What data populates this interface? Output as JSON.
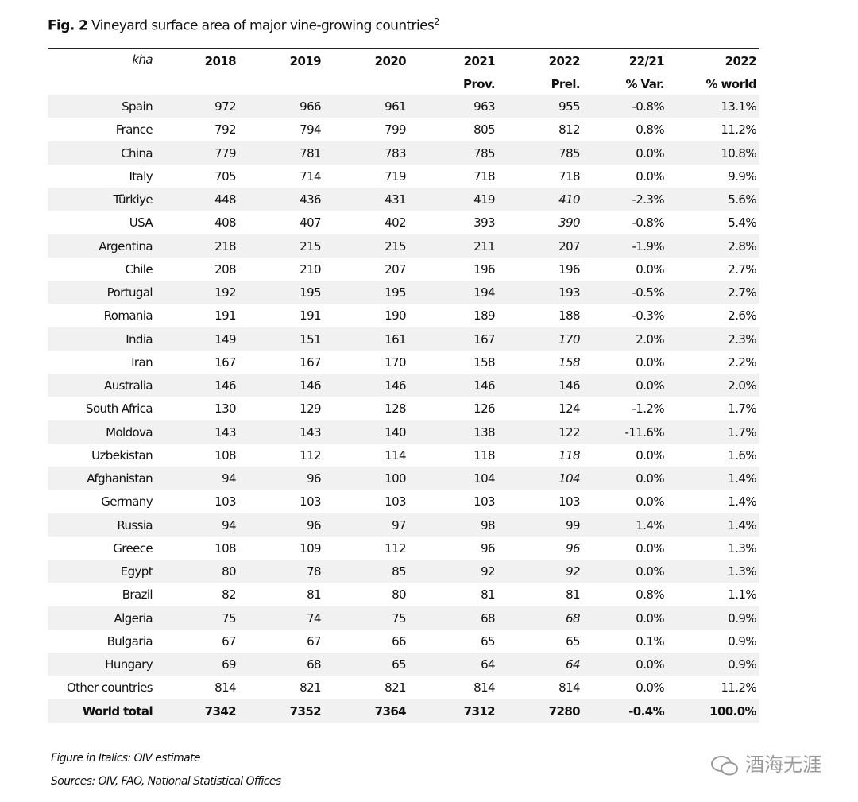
{
  "header": {
    "label": "Fig. 2",
    "title": "Vineyard surface area of major vine-growing countries",
    "note": "2"
  },
  "table": {
    "columns": [
      "kha",
      "2018",
      "2019",
      "2020",
      "2021",
      "2022",
      "22/21",
      "2022"
    ],
    "subcolumns": [
      "Prov.",
      "Prel.",
      "% Var.",
      "% world"
    ],
    "rows": [
      {
        "country": "Spain",
        "values": [
          "972",
          "966",
          "961",
          "963",
          "955",
          "-0.8%",
          "13.1%"
        ]
      },
      {
        "country": "France",
        "values": [
          "792",
          "794",
          "799",
          "805",
          "812",
          "0.8%",
          "11.2%"
        ]
      },
      {
        "country": "China",
        "values": [
          "779",
          "781",
          "783",
          "785",
          "785",
          "0.0%",
          "10.8%"
        ]
      },
      {
        "country": "Italy",
        "values": [
          "705",
          "714",
          "719",
          "718",
          "718",
          "0.0%",
          "9.9%"
        ]
      },
      {
        "country": "Türkiye",
        "values": [
          "448",
          "436",
          "431",
          "419",
          "410",
          "-2.3%",
          "5.6%"
        ],
        "estimated": true
      },
      {
        "country": "USA",
        "values": [
          "408",
          "407",
          "402",
          "393",
          "390",
          "-0.8%",
          "5.4%"
        ],
        "estimated": true
      },
      {
        "country": "Argentina",
        "values": [
          "218",
          "215",
          "215",
          "211",
          "207",
          "-1.9%",
          "2.8%"
        ]
      },
      {
        "country": "Chile",
        "values": [
          "208",
          "210",
          "207",
          "196",
          "196",
          "0.0%",
          "2.7%"
        ]
      },
      {
        "country": "Portugal",
        "values": [
          "192",
          "195",
          "195",
          "194",
          "193",
          "-0.5%",
          "2.7%"
        ]
      },
      {
        "country": "Romania",
        "values": [
          "191",
          "191",
          "190",
          "189",
          "188",
          "-0.3%",
          "2.6%"
        ]
      },
      {
        "country": "India",
        "values": [
          "149",
          "151",
          "161",
          "167",
          "170",
          "2.0%",
          "2.3%"
        ],
        "estimated": true
      },
      {
        "country": "Iran",
        "values": [
          "167",
          "167",
          "170",
          "158",
          "158",
          "0.0%",
          "2.2%"
        ],
        "estimated": true
      },
      {
        "country": "Australia",
        "values": [
          "146",
          "146",
          "146",
          "146",
          "146",
          "0.0%",
          "2.0%"
        ]
      },
      {
        "country": "South Africa",
        "values": [
          "130",
          "129",
          "128",
          "126",
          "124",
          "-1.2%",
          "1.7%"
        ]
      },
      {
        "country": "Moldova",
        "values": [
          "143",
          "143",
          "140",
          "138",
          "122",
          "-11.6%",
          "1.7%"
        ]
      },
      {
        "country": "Uzbekistan",
        "values": [
          "108",
          "112",
          "114",
          "118",
          "118",
          "0.0%",
          "1.6%"
        ],
        "estimated": true
      },
      {
        "country": "Afghanistan",
        "values": [
          "94",
          "96",
          "100",
          "104",
          "104",
          "0.0%",
          "1.4%"
        ],
        "estimated": true
      },
      {
        "country": "Germany",
        "values": [
          "103",
          "103",
          "103",
          "103",
          "103",
          "0.0%",
          "1.4%"
        ]
      },
      {
        "country": "Russia",
        "values": [
          "94",
          "96",
          "97",
          "98",
          "99",
          "1.4%",
          "1.4%"
        ]
      },
      {
        "country": "Greece",
        "values": [
          "108",
          "109",
          "112",
          "96",
          "96",
          "0.0%",
          "1.3%"
        ],
        "estimated": true
      },
      {
        "country": "Egypt",
        "values": [
          "80",
          "78",
          "85",
          "92",
          "92",
          "0.0%",
          "1.3%"
        ],
        "estimated": true
      },
      {
        "country": "Brazil",
        "values": [
          "82",
          "81",
          "80",
          "81",
          "81",
          "0.8%",
          "1.1%"
        ]
      },
      {
        "country": "Algeria",
        "values": [
          "75",
          "74",
          "75",
          "68",
          "68",
          "0.0%",
          "0.9%"
        ],
        "estimated": true
      },
      {
        "country": "Bulgaria",
        "values": [
          "67",
          "67",
          "66",
          "65",
          "65",
          "0.1%",
          "0.9%"
        ]
      },
      {
        "country": "Hungary",
        "values": [
          "69",
          "68",
          "65",
          "64",
          "64",
          "0.0%",
          "0.9%"
        ],
        "estimated": true
      },
      {
        "country": "Other countries",
        "values": [
          "814",
          "821",
          "821",
          "814",
          "814",
          "0.0%",
          "11.2%"
        ]
      }
    ],
    "total": {
      "country": "World total",
      "values": [
        "7342",
        "7352",
        "7364",
        "7312",
        "7280",
        "-0.4%",
        "100.0%"
      ]
    }
  },
  "footer": {
    "notes": [
      "Figure in Italics: OIV estimate",
      "Sources: OIV, FAO, National Statistical Offices"
    ]
  },
  "watermark": "酒海无涯"
}
